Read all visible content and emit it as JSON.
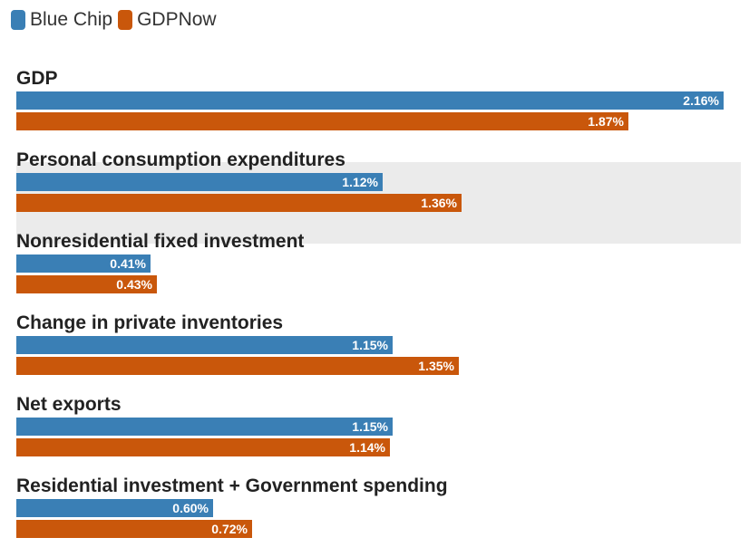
{
  "legend": [
    {
      "label": "Blue Chip",
      "color": "#3a7fb5"
    },
    {
      "label": "GDPNow",
      "color": "#c9570b"
    }
  ],
  "colors": {
    "highlight_bg": "#ebebeb"
  },
  "chart_data": {
    "type": "bar",
    "orientation": "horizontal",
    "categories": [
      "GDP",
      "Personal consumption expenditures",
      "Nonresidential fixed investment",
      "Change in private inventories",
      "Net exports",
      "Residential investment + Government spending"
    ],
    "series": [
      {
        "name": "Blue Chip",
        "values": [
          2.16,
          1.12,
          0.41,
          1.15,
          1.15,
          0.6
        ],
        "labels": [
          "2.16%",
          "1.12%",
          "0.41%",
          "1.15%",
          "1.15%",
          "0.60%"
        ]
      },
      {
        "name": "GDPNow",
        "values": [
          1.87,
          1.36,
          0.43,
          1.35,
          1.14,
          0.72
        ],
        "labels": [
          "1.87%",
          "1.36%",
          "0.43%",
          "1.35%",
          "1.14%",
          "0.72%"
        ]
      }
    ],
    "highlighted_category": "Personal consumption expenditures",
    "legend_position": "top-left"
  }
}
